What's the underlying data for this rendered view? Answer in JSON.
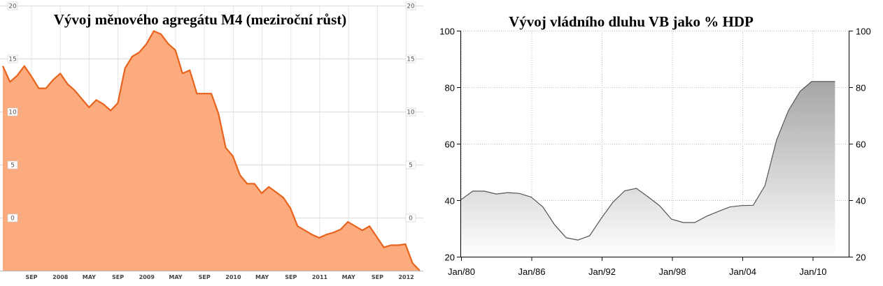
{
  "chart_data": [
    {
      "type": "area",
      "title": "Vývoj měnového agregátu M4 (meziroční růst)",
      "xlabel": "",
      "ylabel": "",
      "ylim": [
        -5,
        20
      ],
      "yticks": [
        20,
        15,
        10,
        5,
        0
      ],
      "xtick_labels": [
        "SEP",
        "2008",
        "MAY",
        "SEP",
        "2009",
        "MAY",
        "SEP",
        "2010",
        "MAY",
        "SEP",
        "2011",
        "MAY",
        "SEP",
        "2012"
      ],
      "grid": true,
      "colors": {
        "fill": "#fbab7d",
        "line": "#e8631c"
      },
      "series": [
        {
          "values": [
            14.3,
            12.8,
            13.4,
            14.3,
            13.3,
            12.2,
            12.2,
            13.0,
            13.6,
            12.6,
            12.0,
            11.2,
            10.4,
            11.1,
            10.7,
            10.1,
            10.8,
            14.1,
            15.2,
            15.6,
            16.4,
            17.6,
            17.3,
            16.4,
            15.8,
            13.6,
            13.9,
            11.7,
            11.7,
            11.7,
            9.8,
            6.6,
            5.8,
            4.0,
            3.2,
            3.2,
            2.3,
            2.9,
            2.4,
            1.9,
            0.9,
            -0.8,
            -1.2,
            -1.6,
            -1.9,
            -1.6,
            -1.4,
            -1.1,
            -0.4,
            -0.8,
            -1.2,
            -0.8,
            -1.8,
            -2.8,
            -2.6,
            -2.6,
            -2.5,
            -4.3,
            -5.0
          ]
        }
      ]
    },
    {
      "type": "area",
      "title": "Vývoj vládního dluhu VB jako % HDP",
      "xlabel": "",
      "ylabel": "",
      "ylim": [
        20,
        100
      ],
      "yticks": [
        100,
        80,
        60,
        40,
        20
      ],
      "xtick_labels": [
        "Jan/80",
        "Jan/86",
        "Jan/92",
        "Jan/98",
        "Jan/04",
        "Jan/10"
      ],
      "grid": true,
      "colors": {
        "fill": "#a6a6a6",
        "line": "#555555"
      },
      "x": [
        1980,
        1981,
        1982,
        1983,
        1984,
        1985,
        1986,
        1987,
        1988,
        1989,
        1990,
        1991,
        1992,
        1993,
        1994,
        1995,
        1996,
        1997,
        1998,
        1999,
        2000,
        2001,
        2002,
        2003,
        2004,
        2005,
        2006,
        2007,
        2008,
        2009,
        2010,
        2011,
        2012
      ],
      "series": [
        {
          "values": [
            40.2,
            43.2,
            43.2,
            42.2,
            42.7,
            42.4,
            41.1,
            37.6,
            31.3,
            26.7,
            25.9,
            27.4,
            33.6,
            39.3,
            43.3,
            44.2,
            41.2,
            38.0,
            33.3,
            32.1,
            32.1,
            34.3,
            36.0,
            37.6,
            38.1,
            38.2,
            45.1,
            61.3,
            71.6,
            78.5,
            82.0,
            82.0,
            82.0
          ]
        }
      ]
    }
  ]
}
